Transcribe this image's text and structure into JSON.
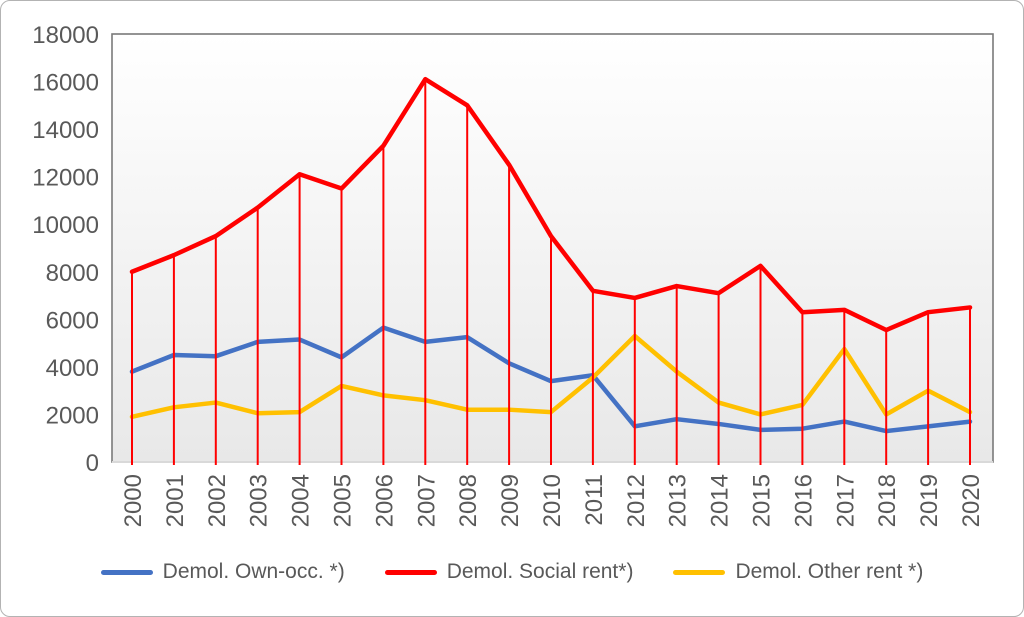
{
  "chart_data": {
    "type": "line",
    "title": "",
    "xlabel": "",
    "ylabel": "",
    "categories": [
      "2000",
      "2001",
      "2002",
      "2003",
      "2004",
      "2005",
      "2006",
      "2007",
      "2008",
      "2009",
      "2010",
      "2011",
      "2012",
      "2013",
      "2014",
      "2015",
      "2016",
      "2017",
      "2018",
      "2019",
      "2020"
    ],
    "series": [
      {
        "name": "Demol. Own-occ. *)",
        "color": "#4472C4",
        "values": [
          3800,
          4500,
          4450,
          5050,
          5150,
          4400,
          5650,
          5050,
          5250,
          4150,
          3400,
          3650,
          1500,
          1800,
          1600,
          1350,
          1400,
          1700,
          1300,
          1500,
          1700
        ]
      },
      {
        "name": "Demol. Social rent*)",
        "color": "#FF0000",
        "drop_lines": true,
        "values": [
          8000,
          8700,
          9500,
          10700,
          12100,
          11500,
          13300,
          16100,
          15000,
          12500,
          9500,
          7200,
          6900,
          7400,
          7100,
          8250,
          6300,
          6400,
          5550,
          6300,
          6500
        ]
      },
      {
        "name": "Demol. Other rent *)",
        "color": "#FFC000",
        "values": [
          1900,
          2300,
          2500,
          2050,
          2100,
          3200,
          2800,
          2600,
          2200,
          2200,
          2100,
          3550,
          5300,
          3800,
          2500,
          2000,
          2400,
          4750,
          2000,
          3000,
          2100
        ]
      }
    ],
    "ylim": [
      0,
      18000
    ],
    "yticks": [
      0,
      2000,
      4000,
      6000,
      8000,
      10000,
      12000,
      14000,
      16000,
      18000
    ],
    "grid": false,
    "legend_position": "bottom",
    "axis_text_color": "#595959",
    "plot_border_color": "#7a7a7a",
    "axis_bottom_line_color": "#d9d9d9",
    "drop_line_color": "#FF0000",
    "plot_bg_top": "#ffffff",
    "plot_bg_bottom": "#e8e8e8"
  }
}
